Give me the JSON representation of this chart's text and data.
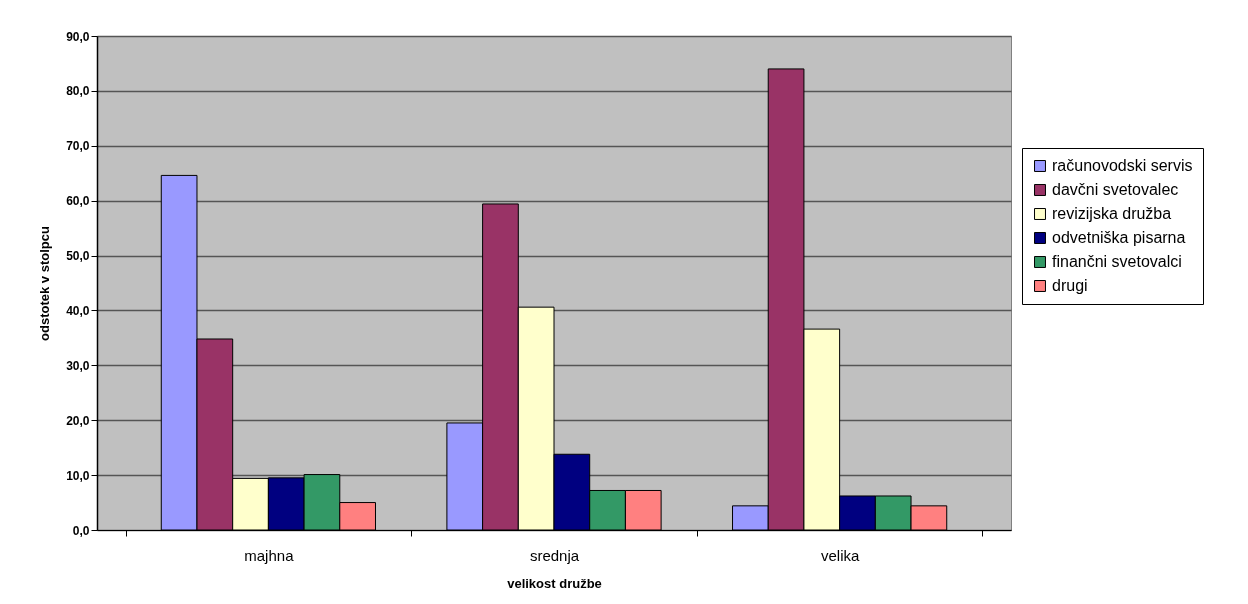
{
  "chart_data": {
    "type": "bar",
    "xlabel": "velikost družbe",
    "ylabel": "odstotek v stolpcu",
    "categories": [
      "majhna",
      "srednja",
      "velika"
    ],
    "series": [
      {
        "name": "računovodski servis",
        "color": "#9999ff",
        "values": [
          64.6,
          19.5,
          4.4
        ]
      },
      {
        "name": "davčni svetovalec",
        "color": "#993366",
        "values": [
          34.8,
          59.4,
          84.0
        ]
      },
      {
        "name": "revizijska družba",
        "color": "#ffffcc",
        "values": [
          9.4,
          40.6,
          36.6
        ]
      },
      {
        "name": "odvetniška pisarna",
        "color": "#000080",
        "values": [
          9.5,
          13.8,
          6.2
        ]
      },
      {
        "name": "finančni svetovalci",
        "color": "#339966",
        "values": [
          10.1,
          7.2,
          6.2
        ]
      },
      {
        "name": "drugi",
        "color": "#ff8080",
        "values": [
          5.0,
          7.2,
          4.4
        ]
      }
    ],
    "ylim": [
      0,
      90
    ],
    "yticks": [
      {
        "value": 0,
        "label": "0,0"
      },
      {
        "value": 10,
        "label": "10,0"
      },
      {
        "value": 20,
        "label": "20,0"
      },
      {
        "value": 30,
        "label": "30,0"
      },
      {
        "value": 40,
        "label": "40,0"
      },
      {
        "value": 50,
        "label": "50,0"
      },
      {
        "value": 60,
        "label": "60,0"
      },
      {
        "value": 70,
        "label": "70,0"
      },
      {
        "value": 80,
        "label": "80,0"
      },
      {
        "value": 90,
        "label": "90,0"
      }
    ],
    "grid": "y",
    "legend": "right"
  }
}
